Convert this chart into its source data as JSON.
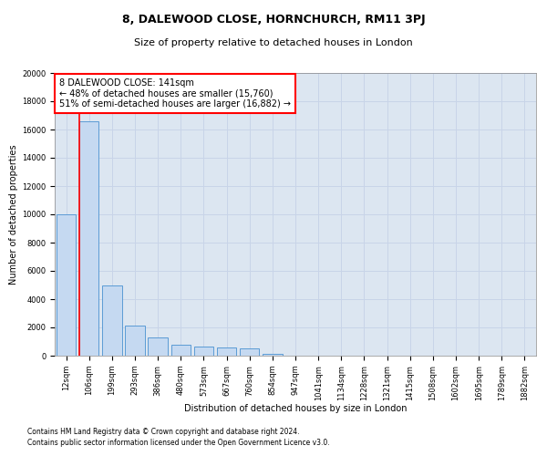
{
  "title": "8, DALEWOOD CLOSE, HORNCHURCH, RM11 3PJ",
  "subtitle": "Size of property relative to detached houses in London",
  "xlabel": "Distribution of detached houses by size in London",
  "ylabel": "Number of detached properties",
  "footnote1": "Contains HM Land Registry data © Crown copyright and database right 2024.",
  "footnote2": "Contains public sector information licensed under the Open Government Licence v3.0.",
  "property_label": "8 DALEWOOD CLOSE: 141sqm",
  "annotation_line1": "← 48% of detached houses are smaller (15,760)",
  "annotation_line2": "51% of semi-detached houses are larger (16,882) →",
  "bar_edge_color": "#5b9bd5",
  "bar_face_color": "#c5d9f1",
  "red_line_color": "#ff0000",
  "annotation_box_color": "#ff0000",
  "grid_color": "#c8d4e8",
  "background_color": "#dce6f1",
  "categories": [
    "12sqm",
    "106sqm",
    "199sqm",
    "293sqm",
    "386sqm",
    "480sqm",
    "573sqm",
    "667sqm",
    "760sqm",
    "854sqm",
    "947sqm",
    "1041sqm",
    "1134sqm",
    "1228sqm",
    "1321sqm",
    "1415sqm",
    "1508sqm",
    "1602sqm",
    "1695sqm",
    "1789sqm",
    "1882sqm"
  ],
  "values": [
    10000,
    16600,
    5000,
    2100,
    1300,
    750,
    650,
    600,
    500,
    120,
    0,
    0,
    0,
    0,
    0,
    0,
    0,
    0,
    0,
    0,
    0
  ],
  "ylim": [
    0,
    20000
  ],
  "yticks": [
    0,
    2000,
    4000,
    6000,
    8000,
    10000,
    12000,
    14000,
    16000,
    18000,
    20000
  ],
  "property_bin_index": 1,
  "title_fontsize": 9,
  "subtitle_fontsize": 8,
  "axis_label_fontsize": 7,
  "tick_fontsize": 6,
  "annotation_fontsize": 7,
  "footnote_fontsize": 5.5
}
